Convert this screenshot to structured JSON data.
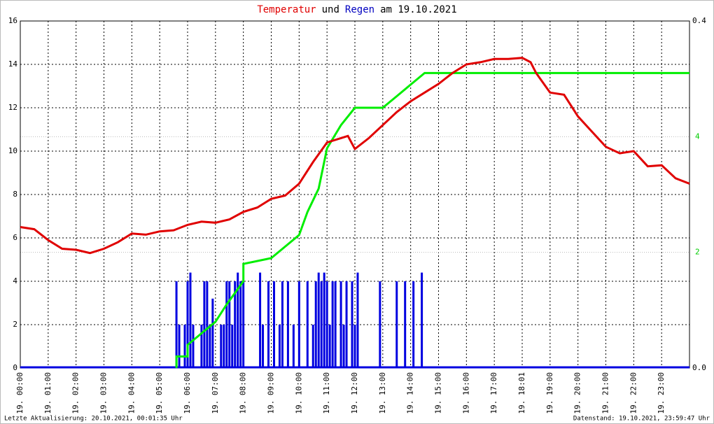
{
  "chart_data": {
    "type": "line",
    "title_parts": [
      {
        "text": "Temperatur",
        "color": "#e00000"
      },
      {
        "text": "und",
        "color": "#000000"
      },
      {
        "text": "Regen",
        "color": "#0000c0"
      },
      {
        "text": "am 19.10.2021",
        "color": "#000000"
      }
    ],
    "footer_left": "Letzte Aktualisierung: 20.10.2021, 00:01:35 Uhr",
    "footer_right": "Datenstand: 19.10.2021, 23:59:47 Uhr",
    "grid": true,
    "xlim": [
      0,
      24
    ],
    "xticks": [
      {
        "value": 0,
        "label": "19. 00:00"
      },
      {
        "value": 1,
        "label": "19. 01:00"
      },
      {
        "value": 2,
        "label": "19. 02:00"
      },
      {
        "value": 3,
        "label": "19. 03:00"
      },
      {
        "value": 4,
        "label": "19. 04:00"
      },
      {
        "value": 5,
        "label": "19. 05:00"
      },
      {
        "value": 6,
        "label": "19. 06:00"
      },
      {
        "value": 7,
        "label": "19. 07:00"
      },
      {
        "value": 8,
        "label": "19. 08:00"
      },
      {
        "value": 9,
        "label": "19. 09:00"
      },
      {
        "value": 10,
        "label": "19. 10:00"
      },
      {
        "value": 11,
        "label": "19. 11:00"
      },
      {
        "value": 12,
        "label": "19. 12:00"
      },
      {
        "value": 13,
        "label": "19. 13:00"
      },
      {
        "value": 14,
        "label": "19. 14:00"
      },
      {
        "value": 15,
        "label": "19. 15:00"
      },
      {
        "value": 16,
        "label": "19. 16:00"
      },
      {
        "value": 17,
        "label": "19. 17:00"
      },
      {
        "value": 18,
        "label": "19. 18:01"
      },
      {
        "value": 19,
        "label": "19. 19:00"
      },
      {
        "value": 20,
        "label": "19. 20:00"
      },
      {
        "value": 21,
        "label": "19. 21:00"
      },
      {
        "value": 22,
        "label": "19. 22:00"
      },
      {
        "value": 23,
        "label": "19. 23:00"
      }
    ],
    "ylim": [
      0,
      16
    ],
    "yticks": [
      0,
      2,
      4,
      6,
      8,
      10,
      12,
      14,
      16
    ],
    "y2lim": [
      0,
      0.4
    ],
    "y2ticks": [
      {
        "value": 0,
        "label": "0.0"
      },
      {
        "value": 0.4,
        "label": "0.4"
      }
    ],
    "y3lim": [
      0,
      6
    ],
    "y3ticks": [
      2,
      4
    ],
    "y3color": "#00cc00",
    "series": [
      {
        "kind": "bar",
        "color": "#0000e0",
        "axis": "y2",
        "x": [
          5.6,
          5.7,
          5.9,
          6.0,
          6.1,
          6.2,
          6.5,
          6.6,
          6.7,
          6.8,
          6.9,
          7.2,
          7.3,
          7.4,
          7.5,
          7.6,
          7.7,
          7.8,
          7.9,
          8.0,
          8.6,
          8.7,
          8.9,
          9.1,
          9.3,
          9.4,
          9.6,
          9.8,
          10.0,
          10.3,
          10.5,
          10.6,
          10.7,
          10.8,
          10.9,
          11.0,
          11.1,
          11.2,
          11.3,
          11.5,
          11.6,
          11.7,
          11.9,
          12.0,
          12.1,
          12.9,
          13.5,
          13.8,
          14.1,
          14.4
        ],
        "values": [
          0.1,
          0.05,
          0.05,
          0.1,
          0.11,
          0.05,
          0.05,
          0.1,
          0.1,
          0.05,
          0.08,
          0.05,
          0.05,
          0.1,
          0.1,
          0.05,
          0.1,
          0.11,
          0.1,
          0.1,
          0.11,
          0.05,
          0.1,
          0.1,
          0.05,
          0.1,
          0.1,
          0.05,
          0.1,
          0.1,
          0.05,
          0.1,
          0.11,
          0.1,
          0.11,
          0.1,
          0.05,
          0.1,
          0.1,
          0.1,
          0.05,
          0.1,
          0.1,
          0.05,
          0.11,
          0.1,
          0.1,
          0.1,
          0.1,
          0.11
        ]
      },
      {
        "kind": "line",
        "color": "#00ee00",
        "axis": "y3",
        "x": [
          5.6,
          5.6,
          6.0,
          6.0,
          7.0,
          7.4,
          8.0,
          8.0,
          9.0,
          10.0,
          10.3,
          10.7,
          11.0,
          11.5,
          12.0,
          13.0,
          13.5,
          14.0,
          14.5,
          24.0
        ],
        "values": [
          0,
          0.2,
          0.2,
          0.4,
          0.8,
          1.1,
          1.5,
          1.8,
          1.9,
          2.3,
          2.7,
          3.1,
          3.8,
          4.2,
          4.5,
          4.5,
          4.7,
          4.9,
          5.1,
          5.1
        ]
      },
      {
        "kind": "line",
        "color": "#e00000",
        "axis": "y",
        "x": [
          0,
          0.5,
          1,
          1.5,
          2,
          2.5,
          3,
          3.5,
          4,
          4.5,
          5,
          5.5,
          6,
          6.5,
          7,
          7.5,
          8,
          8.5,
          9,
          9.5,
          10,
          10.5,
          11,
          11.5,
          11.75,
          12,
          12.5,
          13,
          13.5,
          14,
          14.5,
          15,
          15.5,
          16,
          16.5,
          17,
          17.5,
          18,
          18.3,
          18.5,
          19,
          19.5,
          20,
          20.5,
          21,
          21.5,
          22,
          22.5,
          23,
          23.5,
          24
        ],
        "values": [
          6.5,
          6.4,
          5.9,
          5.5,
          5.45,
          5.3,
          5.5,
          5.8,
          6.2,
          6.15,
          6.3,
          6.35,
          6.6,
          6.75,
          6.7,
          6.85,
          7.2,
          7.4,
          7.8,
          7.95,
          8.5,
          9.5,
          10.4,
          10.6,
          10.7,
          10.1,
          10.6,
          11.2,
          11.8,
          12.3,
          12.7,
          13.1,
          13.6,
          14.0,
          14.1,
          14.25,
          14.25,
          14.3,
          14.1,
          13.6,
          12.7,
          12.6,
          11.6,
          10.9,
          10.2,
          9.9,
          10.0,
          9.3,
          9.35,
          8.75,
          8.5
        ]
      }
    ]
  }
}
